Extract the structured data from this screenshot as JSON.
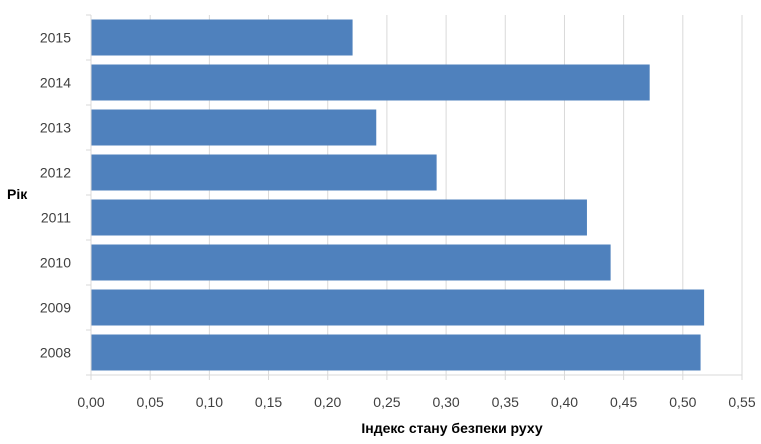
{
  "chart_data": {
    "type": "bar",
    "orientation": "horizontal",
    "categories": [
      "2008",
      "2009",
      "2010",
      "2011",
      "2012",
      "2013",
      "2014",
      "2015"
    ],
    "values": [
      0.515,
      0.518,
      0.439,
      0.419,
      0.292,
      0.241,
      0.472,
      0.221
    ],
    "xlabel": "Індекс стану безпеки руху",
    "ylabel": "Рік",
    "xlim": [
      0,
      0.55
    ],
    "xticks": [
      "0,00",
      "0,05",
      "0,10",
      "0,15",
      "0,20",
      "0,25",
      "0,30",
      "0,35",
      "0,40",
      "0,45",
      "0,50",
      "0,55"
    ],
    "grid": "vertical",
    "bar_color": "#4f81bd",
    "grid_color": "#d9d9d9"
  }
}
